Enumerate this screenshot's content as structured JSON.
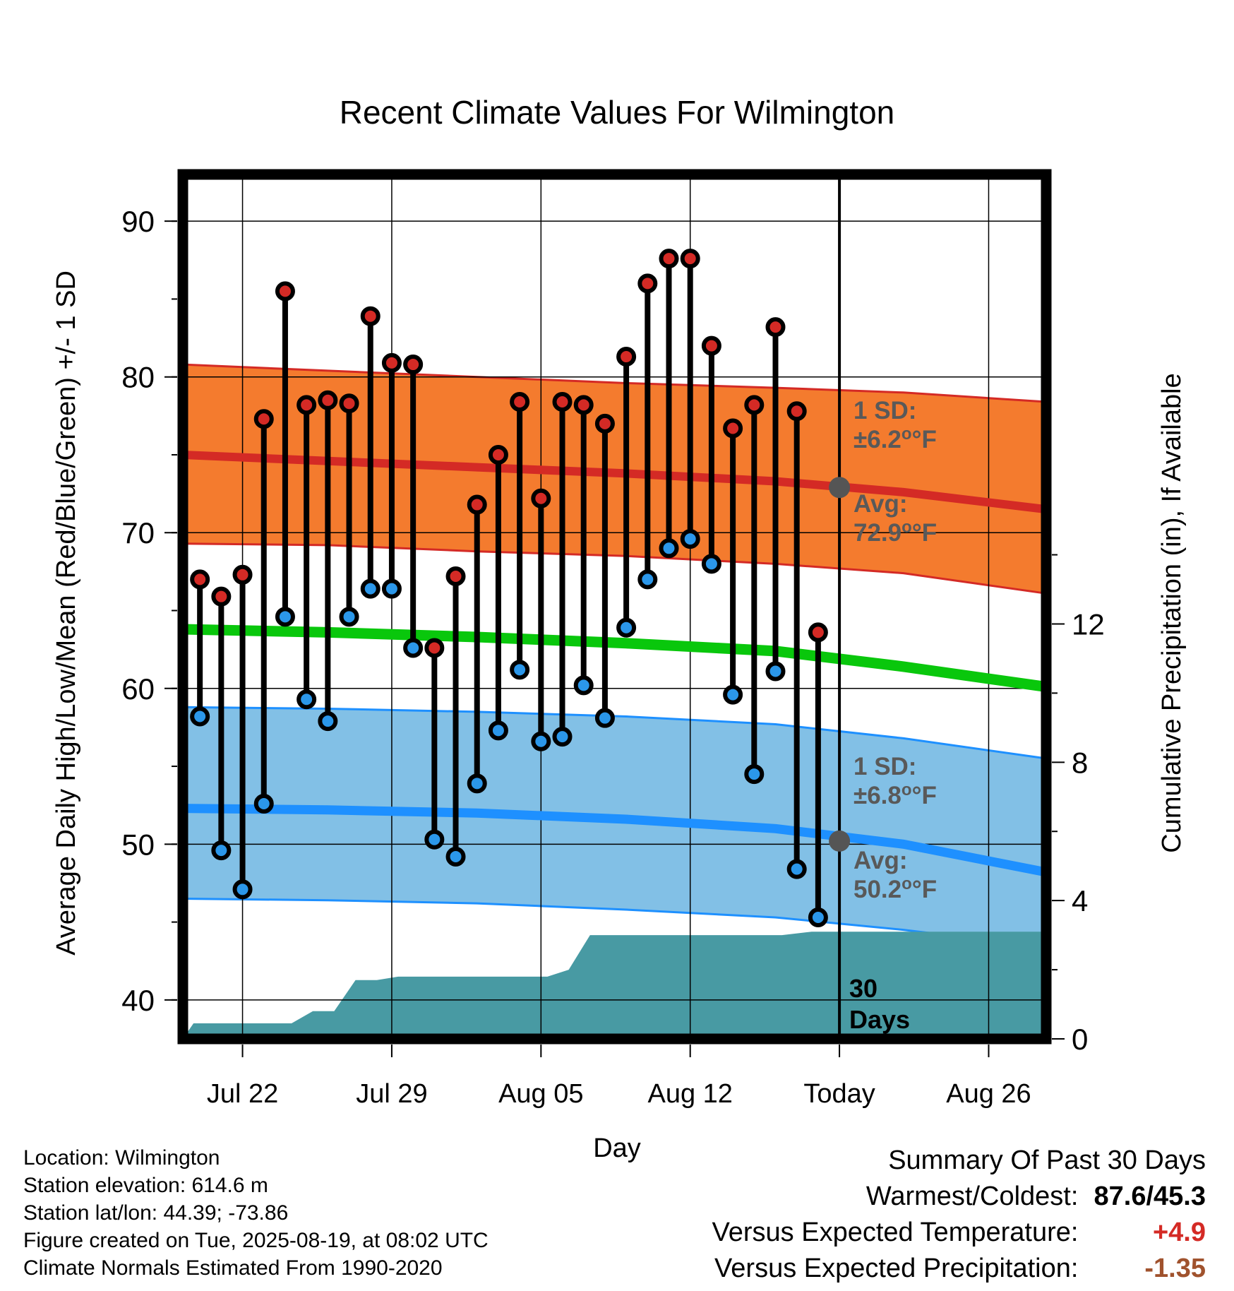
{
  "chart_data": {
    "type": "line",
    "title": "Recent Climate Values For Wilmington",
    "xlabel": "Day",
    "ylabel": "Average Daily High/Low/Mean (Red/Blue/Green) +/- 1 SD",
    "y2label": "Cumulative Precipitation (in), If Available",
    "ylim": [
      37.5,
      93
    ],
    "y_ticks": [
      40,
      50,
      60,
      70,
      80,
      90
    ],
    "y2lim": [
      0,
      25
    ],
    "y2_ticks": [
      0,
      4,
      8,
      12
    ],
    "x_ticks": [
      {
        "day": 3,
        "label": "Jul 22"
      },
      {
        "day": 10,
        "label": "Jul 29"
      },
      {
        "day": 17,
        "label": "Aug 05"
      },
      {
        "day": 24,
        "label": "Aug 12"
      },
      {
        "day": 31,
        "label": "Today"
      },
      {
        "day": 38,
        "label": "Aug 26"
      }
    ],
    "xlim": [
      0.2,
      40.7
    ],
    "today_day": 31,
    "grid": true,
    "daily": {
      "day": [
        1,
        2,
        3,
        4,
        5,
        6,
        7,
        8,
        9,
        10,
        11,
        12,
        13,
        14,
        15,
        16,
        17,
        18,
        19,
        20,
        21,
        22,
        23,
        24,
        25,
        26,
        27,
        28,
        29,
        30
      ],
      "high": [
        67.0,
        65.9,
        67.3,
        77.3,
        85.5,
        78.2,
        78.5,
        78.3,
        83.9,
        80.9,
        80.8,
        62.6,
        67.2,
        71.8,
        75.0,
        78.4,
        72.2,
        78.4,
        78.2,
        77.0,
        81.3,
        86.0,
        87.6,
        87.6,
        82.0,
        76.7,
        78.2,
        83.2,
        77.8,
        63.6
      ],
      "low": [
        58.2,
        49.6,
        47.1,
        52.6,
        64.6,
        59.3,
        57.9,
        64.6,
        66.4,
        66.4,
        62.6,
        50.3,
        49.2,
        53.9,
        57.3,
        61.2,
        56.6,
        56.9,
        60.2,
        58.1,
        63.9,
        67.0,
        69.0,
        69.6,
        68.0,
        59.6,
        54.5,
        61.1,
        48.4,
        45.3
      ]
    },
    "normals": {
      "day": [
        0.2,
        7,
        14,
        21,
        28,
        34,
        40.7
      ],
      "high_mean": [
        75.0,
        74.6,
        74.2,
        73.8,
        73.3,
        72.6,
        71.5
      ],
      "high_sd_upper": [
        80.8,
        80.4,
        80.0,
        79.6,
        79.3,
        79.0,
        78.4
      ],
      "high_sd_lower": [
        69.3,
        69.2,
        68.8,
        68.5,
        68.0,
        67.4,
        66.1
      ],
      "mean": [
        63.8,
        63.6,
        63.3,
        62.9,
        62.4,
        61.4,
        60.1
      ],
      "low_mean": [
        52.3,
        52.2,
        52.0,
        51.6,
        51.0,
        50.0,
        48.2
      ],
      "low_sd_upper": [
        58.8,
        58.7,
        58.5,
        58.2,
        57.7,
        56.8,
        55.5
      ],
      "low_sd_lower": [
        46.5,
        46.4,
        46.2,
        45.8,
        45.3,
        44.5,
        43.4
      ]
    },
    "precipitation_cumulative": {
      "day": [
        0.2,
        0.7,
        5.3,
        6.3,
        7.3,
        8.3,
        9.3,
        10.3,
        11.3,
        17.3,
        18.3,
        19.3,
        20.3,
        26.3,
        27.3,
        28.3,
        29.7,
        31,
        40.7
      ],
      "value": [
        0.0,
        0.45,
        0.45,
        0.8,
        0.8,
        1.7,
        1.7,
        1.8,
        1.8,
        1.8,
        2.0,
        3.0,
        3.0,
        3.0,
        3.0,
        3.0,
        3.1,
        3.1,
        3.1
      ]
    },
    "annotations": {
      "high_sd": {
        "line1": "1 SD:",
        "line2": "±6.2",
        "unit": "°F"
      },
      "high_avg": {
        "line1": "Avg:",
        "line2": "72.9",
        "unit": "°F"
      },
      "low_sd": {
        "line1": "1 SD:",
        "line2": "±6.8",
        "unit": "°F"
      },
      "low_avg": {
        "line1": "Avg:",
        "line2": "50.2",
        "unit": "°F"
      },
      "days": {
        "line1": "30",
        "line2": "Days"
      }
    },
    "colors": {
      "high_band": "#f47b2e",
      "high_line": "#d42a25",
      "mean_line": "#09c70c",
      "low_band": "#82c0e6",
      "low_line": "#1e90ff",
      "precip": "#489aa3",
      "high_marker": "#d42a25",
      "low_marker": "#2b97ea",
      "annotation_text": "#595959",
      "today_marker": "#555555"
    }
  },
  "footer": {
    "location": "Location: Wilmington",
    "elevation": "Station elevation: 614.6 m",
    "latlon": "Station lat/lon: 44.39; -73.86",
    "created": "Figure created on Tue, 2025-08-19, at 08:02 UTC",
    "normals": "Climate Normals Estimated From 1990-2020"
  },
  "summary": {
    "heading": "Summary Of Past 30 Days",
    "warm_cold_label": "Warmest/Coldest:",
    "warm_cold_value": "87.6/45.3",
    "temp_label": "Versus Expected Temperature:",
    "temp_value": "+4.9",
    "temp_color": "#d42a25",
    "precip_label": "Versus Expected Precipitation:",
    "precip_value": "-1.35",
    "precip_color": "#a0522d"
  }
}
